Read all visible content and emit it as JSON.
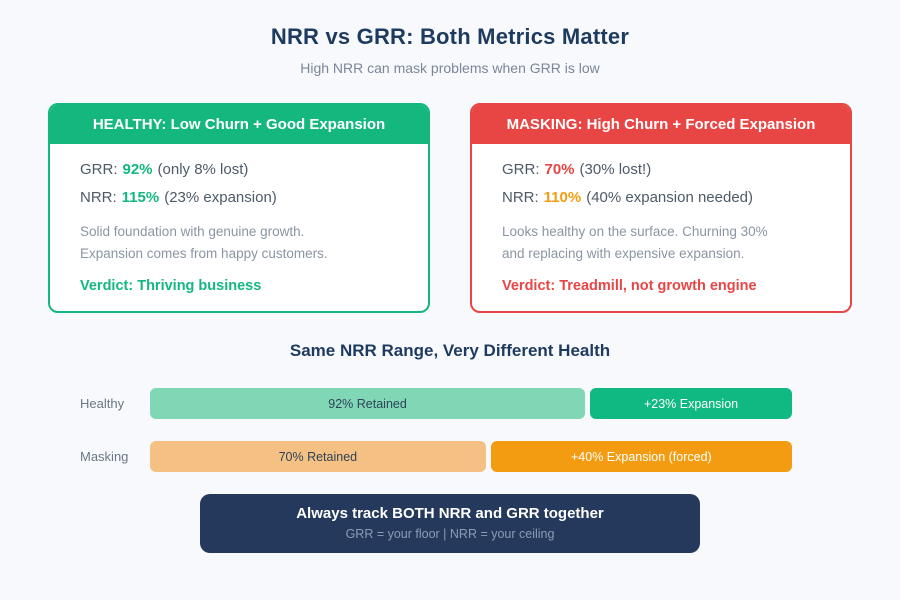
{
  "page": {
    "title": "NRR vs GRR: Both Metrics Matter",
    "subtitle": "High NRR can mask problems when GRR is low"
  },
  "cards": [
    {
      "header": "HEALTHY: Low Churn + Good Expansion",
      "accent": "#14b87f",
      "metrics": [
        {
          "label": "GRR:",
          "value": "92%",
          "color": "#14b87f",
          "note": "(only 8% lost)"
        },
        {
          "label": "NRR:",
          "value": "115%",
          "color": "#14b87f",
          "note": "(23% expansion)"
        }
      ],
      "description": {
        "0": "Solid foundation with genuine growth.",
        "1": "Expansion comes from happy customers."
      },
      "verdict": "Verdict: Thriving business"
    },
    {
      "header": "MASKING: High Churn + Forced Expansion",
      "accent": "#e84545",
      "metrics": [
        {
          "label": "GRR:",
          "value": "70%",
          "color": "#e84545",
          "note": "(30% lost!)"
        },
        {
          "label": "NRR:",
          "value": "110%",
          "color": "#f39c12",
          "note": "(40% expansion needed)"
        }
      ],
      "description": {
        "0": "Looks healthy on the surface. Churning 30%",
        "1": "and replacing with expensive expansion."
      },
      "verdict": "Verdict: Treadmill, not growth engine"
    }
  ],
  "chart_data": {
    "type": "bar",
    "title": "Same NRR Range, Very Different Health",
    "orientation": "horizontal-stacked",
    "rows": [
      {
        "label": "Healthy",
        "segments": [
          {
            "name": "retained",
            "value": 92,
            "text": "92% Retained",
            "color": "#7fd7b5",
            "text_color": "#2f4358",
            "width_pct": 68.3
          },
          {
            "name": "expansion",
            "value": 23,
            "text": "+23% Expansion",
            "color": "#10b981",
            "text_color": "#ffffff",
            "width_pct": 31.7
          }
        ]
      },
      {
        "label": "Masking",
        "segments": [
          {
            "name": "retained",
            "value": 70,
            "text": "70% Retained",
            "color": "#f5c083",
            "text_color": "#2f4358",
            "width_pct": 52.7
          },
          {
            "name": "expansion",
            "value": 40,
            "text": "+40% Expansion (forced)",
            "color": "#f39c12",
            "text_color": "#ffffff",
            "width_pct": 47.3
          }
        ]
      }
    ]
  },
  "banner": {
    "title": "Always track BOTH NRR and GRR together",
    "subtitle": "GRR = your floor | NRR = your ceiling",
    "bg": "#24395c"
  },
  "colors": {
    "healthy_accent": "#14b87f",
    "masking_accent": "#e84545",
    "warning_orange": "#f39c12",
    "navy": "#1e3a5f",
    "page_bg": "#f7f9fc"
  }
}
